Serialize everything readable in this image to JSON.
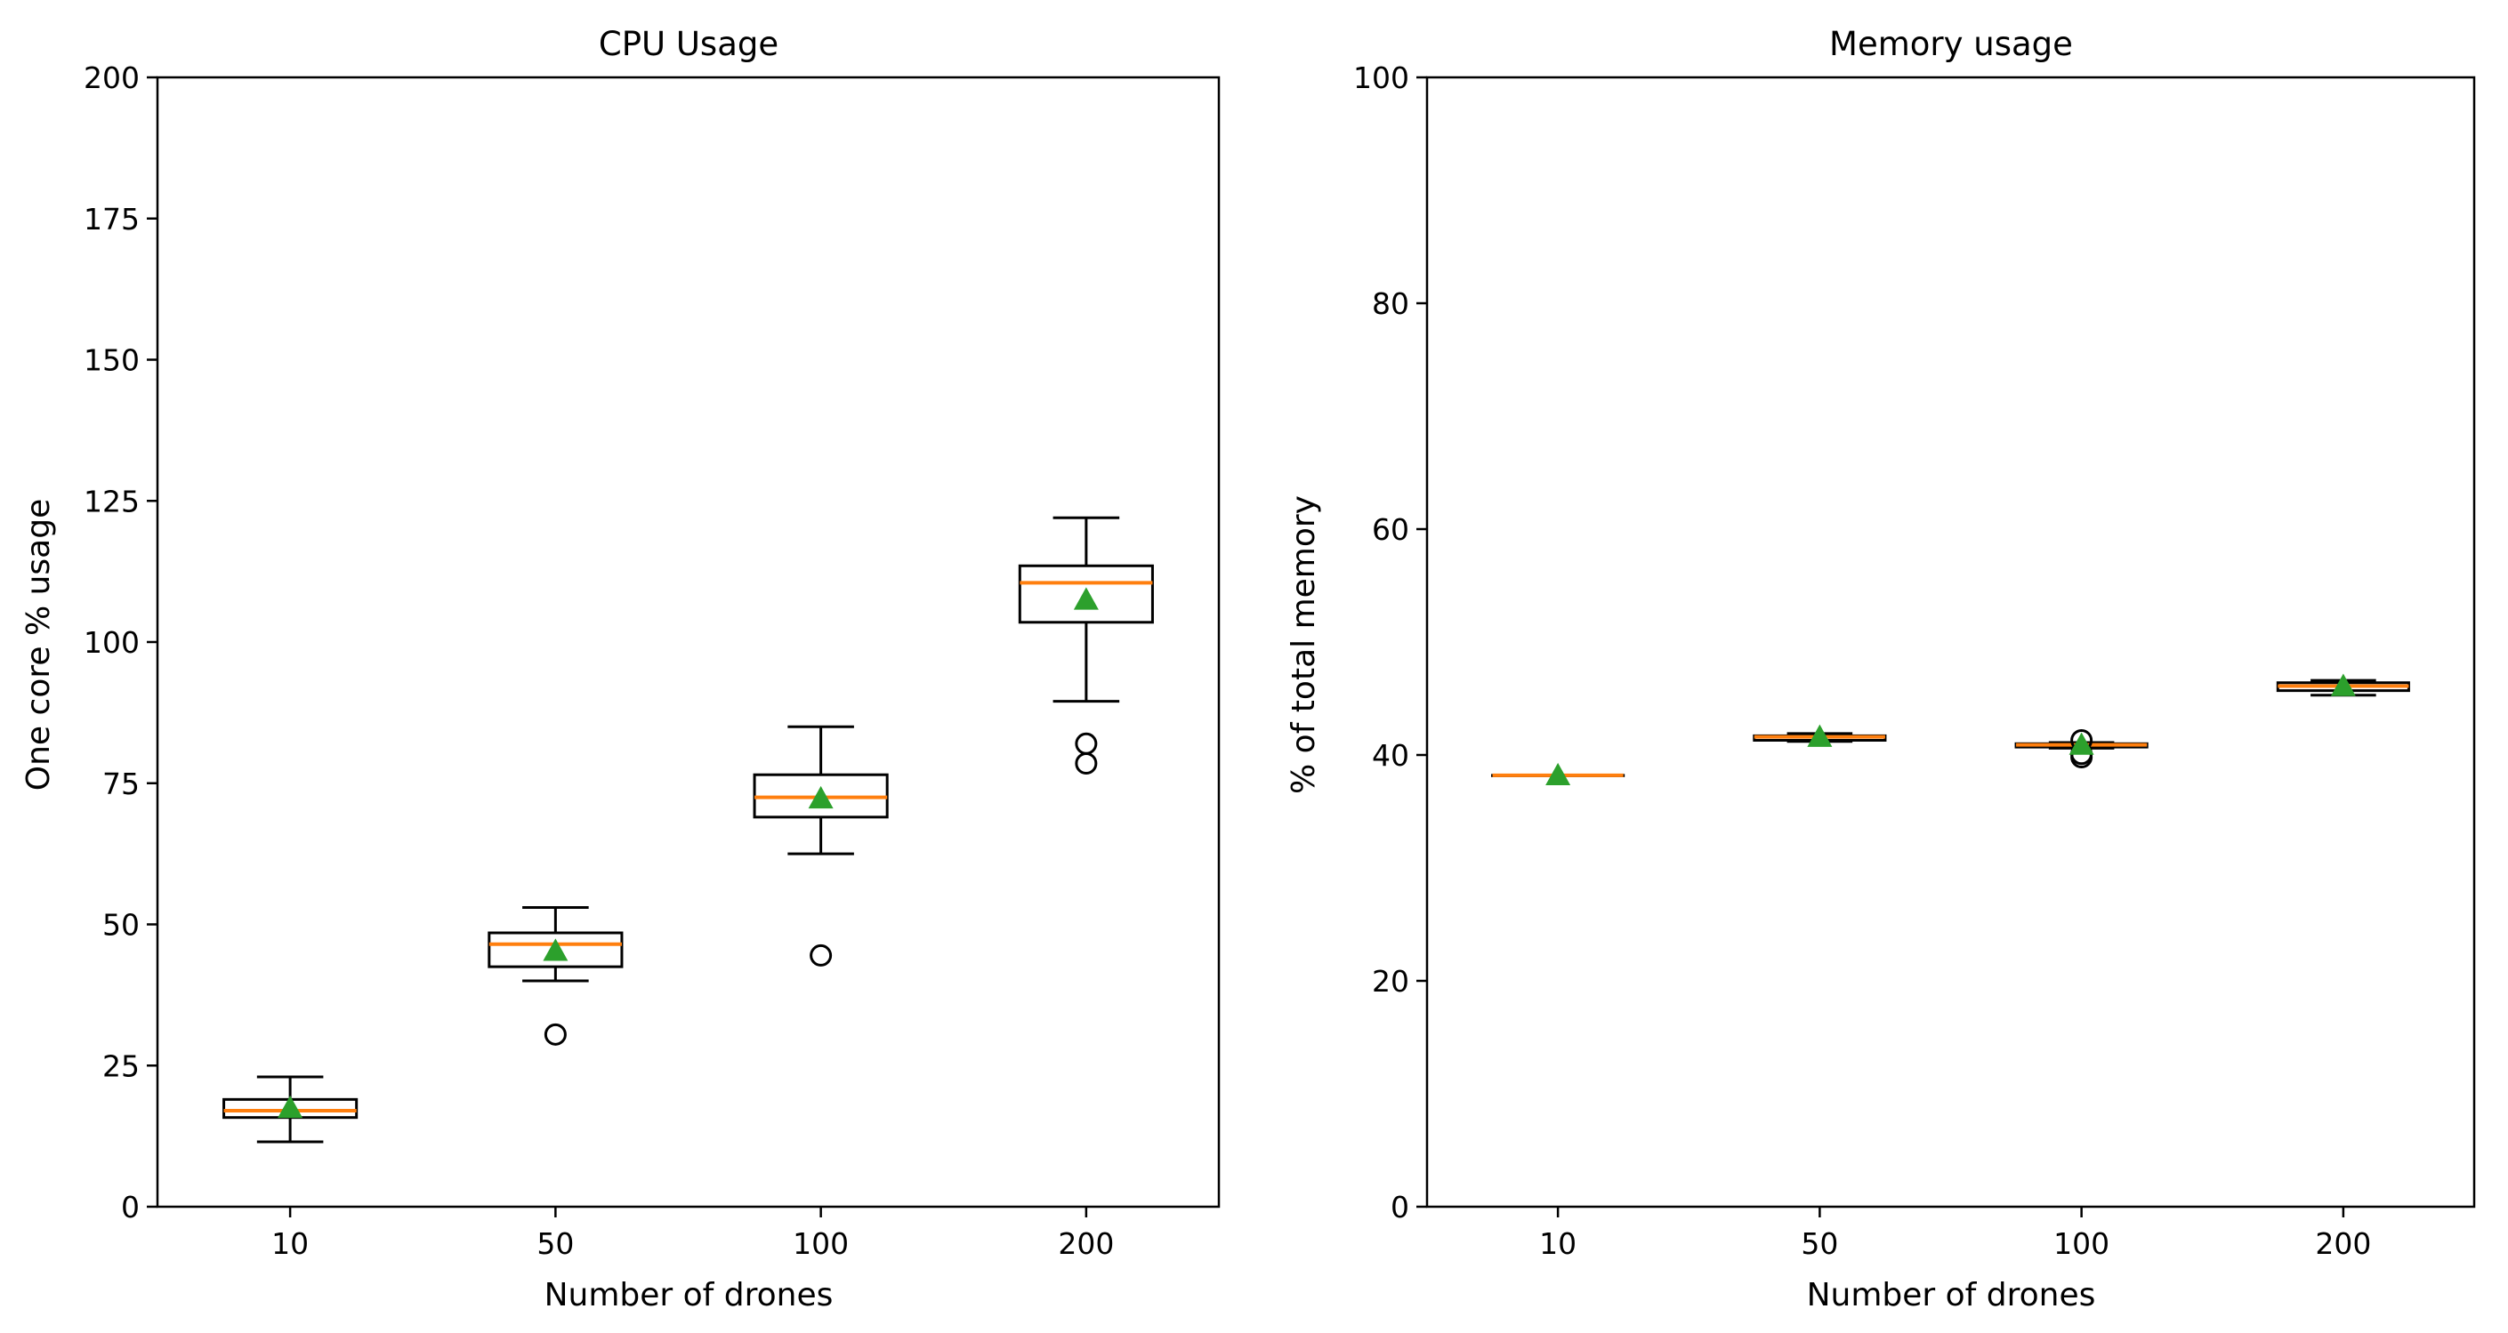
{
  "chart_data": [
    {
      "type": "box",
      "title": "CPU Usage",
      "xlabel": "Number of drones",
      "ylabel": "One core % usage",
      "categories": [
        "10",
        "50",
        "100",
        "200"
      ],
      "ylim": [
        0,
        200
      ],
      "yticks": [
        0,
        25,
        50,
        75,
        100,
        125,
        150,
        175,
        200
      ],
      "boxes": [
        {
          "whisker_low": 11.5,
          "q1": 15.8,
          "median": 17.0,
          "q3": 19.0,
          "whisker_high": 23.0,
          "mean": 17.5,
          "outliers": []
        },
        {
          "whisker_low": 40.0,
          "q1": 42.5,
          "median": 46.5,
          "q3": 48.5,
          "whisker_high": 53.0,
          "mean": 45.3,
          "outliers": [
            30.5
          ]
        },
        {
          "whisker_low": 62.5,
          "q1": 69.0,
          "median": 72.5,
          "q3": 76.5,
          "whisker_high": 85.0,
          "mean": 72.3,
          "outliers": [
            44.5
          ]
        },
        {
          "whisker_low": 89.5,
          "q1": 103.5,
          "median": 110.5,
          "q3": 113.5,
          "whisker_high": 122.0,
          "mean": 107.5,
          "outliers": [
            82.0,
            78.5
          ]
        }
      ]
    },
    {
      "type": "box",
      "title": "Memory usage",
      "xlabel": "Number of drones",
      "ylabel": "% of total memory",
      "categories": [
        "10",
        "50",
        "100",
        "200"
      ],
      "ylim": [
        0,
        100
      ],
      "yticks": [
        0,
        20,
        40,
        60,
        80,
        100
      ],
      "boxes": [
        {
          "whisker_low": 38.2,
          "q1": 38.2,
          "median": 38.2,
          "q3": 38.2,
          "whisker_high": 38.2,
          "mean": 38.2,
          "outliers": []
        },
        {
          "whisker_low": 41.2,
          "q1": 41.3,
          "median": 41.6,
          "q3": 41.7,
          "whisker_high": 41.9,
          "mean": 41.6,
          "outliers": []
        },
        {
          "whisker_low": 40.6,
          "q1": 40.7,
          "median": 40.9,
          "q3": 41.0,
          "whisker_high": 41.1,
          "mean": 40.9,
          "outliers": [
            41.3,
            40.1,
            39.8
          ]
        },
        {
          "whisker_low": 45.3,
          "q1": 45.7,
          "median": 46.1,
          "q3": 46.4,
          "whisker_high": 46.6,
          "mean": 46.1,
          "outliers": []
        }
      ]
    }
  ],
  "colors": {
    "median": "#ff7f0e",
    "mean": "#2ca02c",
    "box": "#000000"
  }
}
